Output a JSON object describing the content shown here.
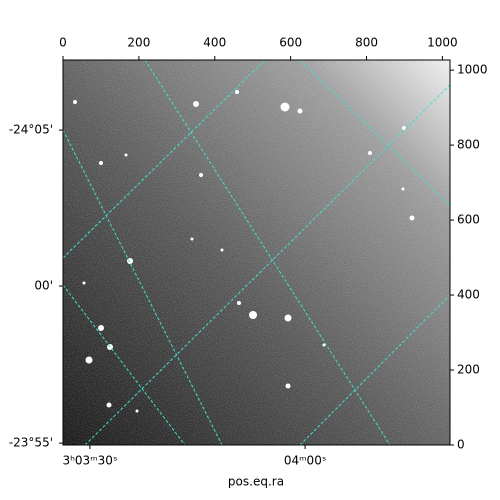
{
  "chart_data": {
    "type": "image",
    "xlabel": "pos.eq.ra",
    "xlim": [
      0,
      1020
    ],
    "ylim": [
      0,
      1027
    ],
    "xticks": [
      0,
      200,
      400,
      600,
      800,
      1000
    ],
    "yticks": [
      0,
      200,
      400,
      600,
      800,
      1000
    ],
    "dec_ticks": [
      {
        "value": 840,
        "label": "-24°05'"
      },
      {
        "value": 424,
        "label": "00'"
      },
      {
        "value": 5,
        "label": "-23°55'"
      }
    ],
    "ra_ticks": [
      {
        "value": 71,
        "label": "3ʰ03ᵐ30ˢ"
      },
      {
        "value": 638,
        "label": "04ᵐ00ˢ"
      }
    ],
    "grid_color": "#40e0d0"
  }
}
